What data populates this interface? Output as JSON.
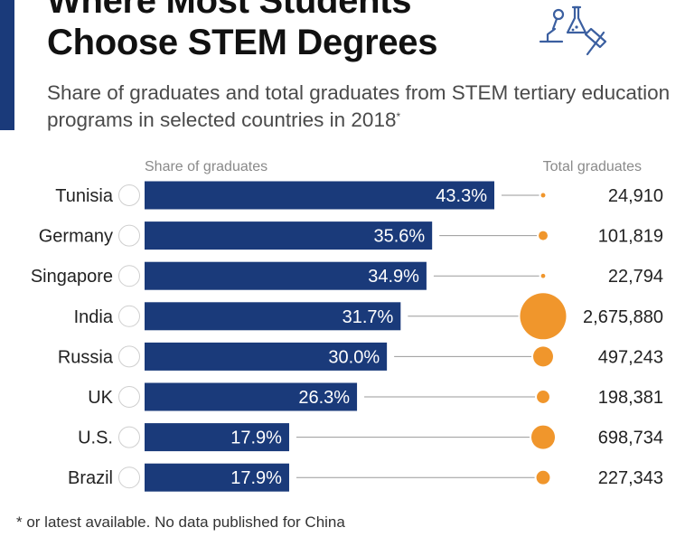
{
  "title_line1": "Where Most Students",
  "title_line2": "Choose STEM Degrees",
  "subtitle": "Share of graduates and total graduates from STEM tertiary education programs in selected countries in 2018",
  "subtitle_mark": "*",
  "footnote": "* or latest available. No data published for China",
  "icon": "science-lab-icon",
  "colors": {
    "bar": "#1a3a7a",
    "bubble": "#f0962c",
    "connector": "#9a9a9a",
    "accent": "#1a3a7a"
  },
  "chart_data": {
    "type": "bar",
    "orientation": "horizontal",
    "column_headers": {
      "share": "Share of graduates",
      "total": "Total graduates"
    },
    "categories": [
      "Tunisia",
      "Germany",
      "Singapore",
      "India",
      "Russia",
      "UK",
      "U.S.",
      "Brazil"
    ],
    "series": [
      {
        "name": "Share of graduates",
        "values": [
          43.3,
          35.6,
          34.9,
          31.7,
          30.0,
          26.3,
          17.9,
          17.9
        ],
        "value_labels": [
          "43.3%",
          "35.6%",
          "34.9%",
          "31.7%",
          "30.0%",
          "26.3%",
          "17.9%",
          "17.9%"
        ]
      },
      {
        "name": "Total graduates",
        "values": [
          24910,
          101819,
          22794,
          2675880,
          497243,
          198381,
          698734,
          227343
        ],
        "value_labels": [
          "24,910",
          "101,819",
          "22,794",
          "2,675,880",
          "497,243",
          "198,381",
          "698,734",
          "227,343"
        ]
      }
    ],
    "xlim": [
      0,
      50
    ],
    "bubble_encoding": "area proportional to total graduates",
    "grid": false,
    "legend": "none"
  }
}
